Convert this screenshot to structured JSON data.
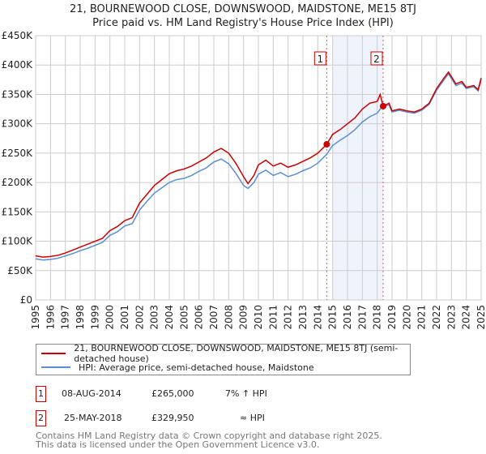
{
  "chart_data": {
    "type": "line",
    "title": "21, BOURNEWOOD CLOSE, DOWNSWOOD, MAIDSTONE, ME15 8TJ",
    "subtitle": "Price paid vs. HM Land Registry's House Price Index (HPI)",
    "xlim": [
      1995,
      2025
    ],
    "ylim": [
      0,
      450000
    ],
    "x_ticks": [
      "1995",
      "1996",
      "1997",
      "1998",
      "1999",
      "2000",
      "2001",
      "2002",
      "2003",
      "2004",
      "2005",
      "2006",
      "2007",
      "2008",
      "2009",
      "2010",
      "2011",
      "2012",
      "2013",
      "2014",
      "2015",
      "2016",
      "2017",
      "2018",
      "2019",
      "2020",
      "2021",
      "2022",
      "2023",
      "2024",
      "2025"
    ],
    "y_ticks": [
      {
        "v": 0,
        "label": "£0"
      },
      {
        "v": 50000,
        "label": "£50K"
      },
      {
        "v": 100000,
        "label": "£100K"
      },
      {
        "v": 150000,
        "label": "£150K"
      },
      {
        "v": 200000,
        "label": "£200K"
      },
      {
        "v": 250000,
        "label": "£250K"
      },
      {
        "v": 300000,
        "label": "£300K"
      },
      {
        "v": 350000,
        "label": "£350K"
      },
      {
        "v": 400000,
        "label": "£400K"
      },
      {
        "v": 450000,
        "label": "£450K"
      }
    ],
    "grid": true,
    "shaded_range": [
      2015.0,
      2018.4
    ],
    "series": [
      {
        "name": "21, BOURNEWOOD CLOSE, DOWNSWOOD, MAIDSTONE, ME15 8TJ (semi-detached house)",
        "color": "#cc0000",
        "x": [
          1995,
          1995.5,
          1996,
          1996.5,
          1997,
          1997.5,
          1998,
          1998.5,
          1999,
          1999.5,
          2000,
          2000.5,
          2001,
          2001.5,
          2002,
          2002.5,
          2003,
          2003.5,
          2004,
          2004.5,
          2005,
          2005.5,
          2006,
          2006.5,
          2007,
          2007.5,
          2008,
          2008.5,
          2009,
          2009.3,
          2009.7,
          2010,
          2010.5,
          2011,
          2011.5,
          2012,
          2012.5,
          2013,
          2013.5,
          2014,
          2014.6,
          2015,
          2015.5,
          2016,
          2016.5,
          2017,
          2017.5,
          2018,
          2018.2,
          2018.4,
          2018.8,
          2019,
          2019.5,
          2020,
          2020.5,
          2021,
          2021.5,
          2022,
          2022.5,
          2022.8,
          2023,
          2023.3,
          2023.7,
          2024,
          2024.5,
          2024.8,
          2025
        ],
        "y": [
          75000,
          73000,
          74000,
          76000,
          80000,
          85000,
          90000,
          95000,
          100000,
          105000,
          118000,
          125000,
          135000,
          140000,
          165000,
          180000,
          195000,
          205000,
          215000,
          220000,
          223000,
          228000,
          235000,
          242000,
          252000,
          258000,
          250000,
          232000,
          210000,
          198000,
          212000,
          230000,
          238000,
          228000,
          233000,
          226000,
          230000,
          236000,
          242000,
          250000,
          265000,
          282000,
          290000,
          300000,
          310000,
          325000,
          335000,
          338000,
          350000,
          330000,
          335000,
          322000,
          325000,
          322000,
          320000,
          325000,
          335000,
          360000,
          378000,
          388000,
          380000,
          368000,
          372000,
          362000,
          365000,
          358000,
          378000
        ]
      },
      {
        "name": "HPI: Average price, semi-detached house, Maidstone",
        "color": "#5b8fd0",
        "x": [
          1995,
          1995.5,
          1996,
          1996.5,
          1997,
          1997.5,
          1998,
          1998.5,
          1999,
          1999.5,
          2000,
          2000.5,
          2001,
          2001.5,
          2002,
          2002.5,
          2003,
          2003.5,
          2004,
          2004.5,
          2005,
          2005.5,
          2006,
          2006.5,
          2007,
          2007.5,
          2008,
          2008.5,
          2009,
          2009.3,
          2009.7,
          2010,
          2010.5,
          2011,
          2011.5,
          2012,
          2012.5,
          2013,
          2013.5,
          2014,
          2014.6,
          2015,
          2015.5,
          2016,
          2016.5,
          2017,
          2017.5,
          2018,
          2018.2,
          2018.4,
          2018.8,
          2019,
          2019.5,
          2020,
          2020.5,
          2021,
          2021.5,
          2022,
          2022.5,
          2022.8,
          2023,
          2023.3,
          2023.7,
          2024,
          2024.5,
          2024.8,
          2025
        ],
        "y": [
          70000,
          68000,
          69000,
          71000,
          75000,
          79000,
          84000,
          88000,
          93000,
          98000,
          110000,
          116000,
          126000,
          130000,
          153000,
          168000,
          182000,
          191000,
          200000,
          205000,
          207000,
          212000,
          219000,
          225000,
          235000,
          240000,
          232000,
          215000,
          195000,
          190000,
          200000,
          214000,
          221000,
          212000,
          217000,
          210000,
          214000,
          220000,
          225000,
          233000,
          248000,
          263000,
          272000,
          280000,
          290000,
          303000,
          312000,
          318000,
          325000,
          330000,
          332000,
          320000,
          323000,
          320000,
          318000,
          323000,
          333000,
          357000,
          375000,
          385000,
          377000,
          365000,
          369000,
          360000,
          363000,
          356000,
          375000
        ]
      }
    ],
    "sales": [
      {
        "id": "1",
        "x": 2014.6,
        "y": 265000,
        "date": "08-AUG-2014",
        "price": "£265,000",
        "hpi_note": "7% ↑ HPI"
      },
      {
        "id": "2",
        "x": 2018.4,
        "y": 329950,
        "date": "25-MAY-2018",
        "price": "£329,950",
        "hpi_note": "≈ HPI"
      }
    ]
  },
  "legend": {
    "property": "21, BOURNEWOOD CLOSE, DOWNSWOOD, MAIDSTONE, ME15 8TJ (semi-detached house)",
    "hpi": "HPI: Average price, semi-detached house, Maidstone"
  },
  "footer": {
    "line1": "Contains HM Land Registry data © Crown copyright and database right 2025.",
    "line2": "This data is licensed under the Open Government Licence v3.0."
  }
}
